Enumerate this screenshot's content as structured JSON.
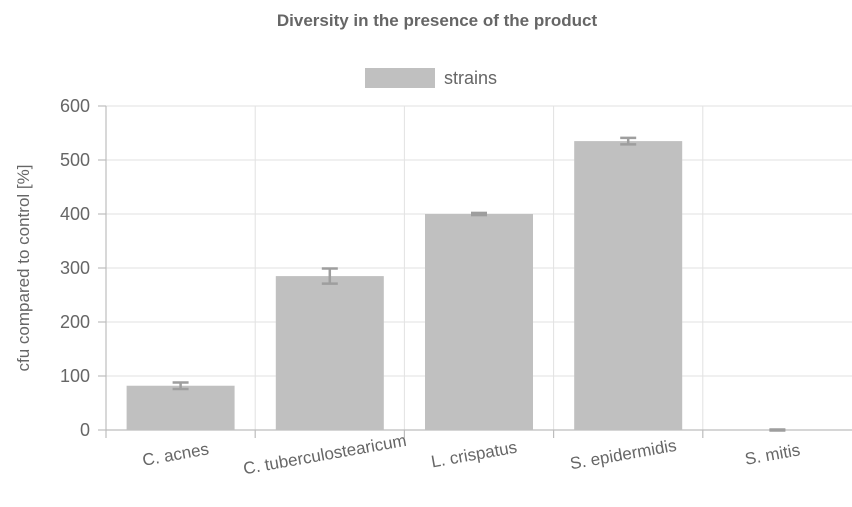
{
  "chart_data": {
    "type": "bar",
    "title": "Diversity in the presence of the product",
    "xlabel": "",
    "ylabel": "cfu compared to control [%]",
    "categories": [
      "C. acnes",
      "C. tuberculostearicum",
      "L. crispatus",
      "S. epidermidis",
      "S. mitis"
    ],
    "series": [
      {
        "name": "strains",
        "values": [
          82,
          285,
          400,
          535,
          0
        ],
        "errors": [
          6,
          14,
          2,
          6,
          1
        ],
        "color": "#c0c0c0",
        "error_color": "#9e9e9e"
      }
    ],
    "ylim": [
      0,
      600
    ],
    "yticks": [
      0,
      100,
      200,
      300,
      400,
      500,
      600
    ],
    "grid": true,
    "legend_position": "top-center"
  }
}
